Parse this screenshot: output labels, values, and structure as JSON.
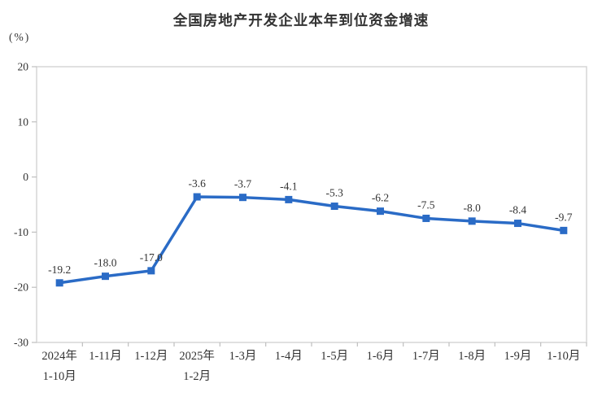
{
  "page": {
    "background": "#ffffff"
  },
  "chart_data": {
    "type": "line",
    "title": "全国房地产开发企业本年到位资金增速",
    "unit_label": "(%)",
    "categories": [
      [
        "2024年",
        "1-10月"
      ],
      [
        "1-11月"
      ],
      [
        "1-12月"
      ],
      [
        "2025年",
        "1-2月"
      ],
      [
        "1-3月"
      ],
      [
        "1-4月"
      ],
      [
        "1-5月"
      ],
      [
        "1-6月"
      ],
      [
        "1-7月"
      ],
      [
        "1-8月"
      ],
      [
        "1-9月"
      ],
      [
        "1-10月"
      ]
    ],
    "values": [
      -19.2,
      -18.0,
      -17.0,
      -3.6,
      -3.7,
      -4.1,
      -5.3,
      -6.2,
      -7.5,
      -8.0,
      -8.4,
      -9.7
    ],
    "value_labels": [
      "-19.2",
      "-18.0",
      "-17.0",
      "-3.6",
      "-3.7",
      "-4.1",
      "-5.3",
      "-6.2",
      "-7.5",
      "-8.0",
      "-8.4",
      "-9.7"
    ],
    "ylim": [
      -30,
      20
    ],
    "yticks": [
      20,
      10,
      0,
      -10,
      -20,
      -30
    ],
    "ytick_labels": [
      "20",
      "10",
      "0",
      "-10",
      "-20",
      "-30"
    ],
    "grid": false,
    "legend": "none",
    "marker": "square",
    "colors": {
      "line": "#2A6BC6",
      "marker": "#2A6BC6",
      "plot_border": "#D6D6D6",
      "axis_tick": "#BFBFBF",
      "text": "#333333"
    }
  }
}
